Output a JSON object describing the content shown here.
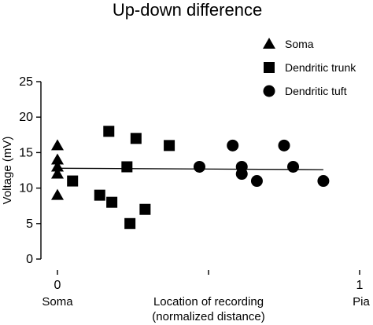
{
  "chart_data": {
    "type": "scatter",
    "title": "Up-down difference",
    "ylabel": "Voltage (mV)",
    "xlabel_lines": [
      "Location of recording",
      "(normalized distance)"
    ],
    "x_end_labels": [
      "Soma",
      "Pia"
    ],
    "xlim": [
      0,
      1
    ],
    "ylim": [
      0,
      25
    ],
    "x_ticks": [
      0,
      1
    ],
    "x_tick_labels": [
      "0",
      "1"
    ],
    "y_ticks": [
      0,
      5,
      10,
      15,
      20,
      25
    ],
    "y_tick_labels": [
      "0",
      "5",
      "10",
      "15",
      "20",
      "25"
    ],
    "legend_position": "top-right",
    "series": [
      {
        "name": "Soma",
        "marker": "triangle",
        "points": [
          {
            "x": 0.0,
            "y": 16
          },
          {
            "x": 0.0,
            "y": 14
          },
          {
            "x": 0.0,
            "y": 13
          },
          {
            "x": 0.0,
            "y": 12
          },
          {
            "x": 0.0,
            "y": 9
          }
        ]
      },
      {
        "name": "Dendritic trunk",
        "marker": "square",
        "points": [
          {
            "x": 0.05,
            "y": 11
          },
          {
            "x": 0.14,
            "y": 9
          },
          {
            "x": 0.17,
            "y": 18
          },
          {
            "x": 0.18,
            "y": 8
          },
          {
            "x": 0.23,
            "y": 13
          },
          {
            "x": 0.24,
            "y": 5
          },
          {
            "x": 0.26,
            "y": 17
          },
          {
            "x": 0.29,
            "y": 7
          },
          {
            "x": 0.37,
            "y": 16
          }
        ]
      },
      {
        "name": "Dendritic tuft",
        "marker": "circle",
        "points": [
          {
            "x": 0.47,
            "y": 13
          },
          {
            "x": 0.58,
            "y": 16
          },
          {
            "x": 0.61,
            "y": 13
          },
          {
            "x": 0.61,
            "y": 12
          },
          {
            "x": 0.66,
            "y": 11
          },
          {
            "x": 0.75,
            "y": 16
          },
          {
            "x": 0.78,
            "y": 13
          },
          {
            "x": 0.88,
            "y": 11
          }
        ]
      }
    ],
    "trend_line": {
      "x": [
        0.0,
        0.88
      ],
      "y": [
        12.8,
        12.6
      ]
    }
  }
}
